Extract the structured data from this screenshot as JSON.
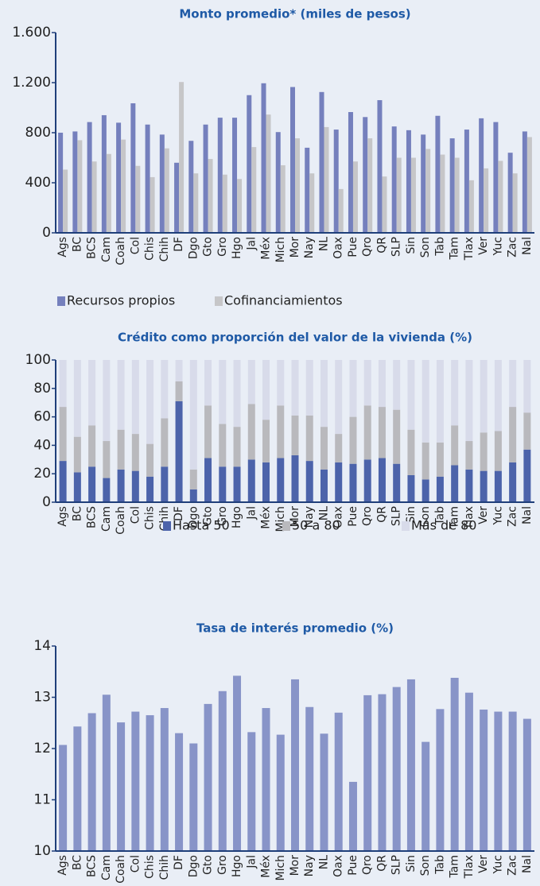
{
  "chart_data": [
    {
      "type": "bar",
      "title": "Monto promedio* (miles de pesos)",
      "categories": [
        "Ags",
        "BC",
        "BCS",
        "Cam",
        "Coah",
        "Col",
        "Chis",
        "Chih",
        "DF",
        "Dgo",
        "Gto",
        "Gro",
        "Hgo",
        "Jal",
        "Méx",
        "Mich",
        "Mor",
        "Nay",
        "NL",
        "Oax",
        "Pue",
        "Qro",
        "QR",
        "SLP",
        "Sin",
        "Son",
        "Tab",
        "Tam",
        "Tlax",
        "Ver",
        "Yuc",
        "Zac",
        "Nal"
      ],
      "series": [
        {
          "name": "Recursos propios",
          "color": "#7580bd",
          "values": [
            800,
            810,
            885,
            940,
            880,
            1035,
            865,
            785,
            560,
            735,
            865,
            920,
            920,
            1100,
            1195,
            805,
            1165,
            680,
            1125,
            825,
            965,
            925,
            1060,
            850,
            820,
            785,
            935,
            755,
            825,
            915,
            885,
            640,
            810
          ]
        },
        {
          "name": "Cofinanciamientos",
          "color": "#c6c6c8",
          "values": [
            505,
            740,
            570,
            630,
            745,
            535,
            445,
            675,
            1205,
            475,
            590,
            465,
            430,
            685,
            945,
            540,
            755,
            475,
            845,
            350,
            570,
            755,
            450,
            600,
            600,
            670,
            625,
            600,
            420,
            515,
            575,
            475,
            765
          ]
        }
      ],
      "ylim": [
        0,
        1600
      ],
      "yticks": [
        0,
        400,
        800,
        {
          "value": 1200,
          "label": "1.200"
        },
        {
          "value": 1600,
          "label": "1.600"
        }
      ]
    },
    {
      "type": "stacked_bar",
      "title": "Crédito como proporción del valor de la vivienda (%)",
      "categories": [
        "Ags",
        "BC",
        "BCS",
        "Cam",
        "Coah",
        "Col",
        "Chis",
        "Chih",
        "DF",
        "Dgo",
        "Gto",
        "Gro",
        "Hgo",
        "Jal",
        "Méx",
        "Mich",
        "Mor",
        "Nay",
        "NL",
        "Oax",
        "Pue",
        "Qro",
        "QR",
        "SLP",
        "Sin",
        "Son",
        "Tab",
        "Tam",
        "Tlax",
        "Ver",
        "Yuc",
        "Zac",
        "Nal"
      ],
      "series": [
        {
          "name": "Hasta 50",
          "color": "#4c63aa",
          "values": [
            29,
            21,
            25,
            17,
            23,
            22,
            18,
            25,
            71,
            9,
            31,
            25,
            25,
            30,
            28,
            31,
            33,
            29,
            23,
            28,
            27,
            30,
            31,
            27,
            19,
            16,
            18,
            26,
            23,
            22,
            22,
            28,
            37
          ]
        },
        {
          "name": "50 a 80",
          "color": "#b9b9bd",
          "values": [
            38,
            25,
            29,
            26,
            28,
            26,
            23,
            34,
            14,
            14,
            37,
            30,
            28,
            39,
            30,
            37,
            28,
            32,
            30,
            20,
            33,
            38,
            36,
            38,
            32,
            26,
            24,
            28,
            20,
            27,
            28,
            39,
            26
          ]
        },
        {
          "name": "Más de 80",
          "color": "#d8dbea",
          "values": [
            33,
            54,
            46,
            57,
            49,
            52,
            59,
            41,
            15,
            77,
            32,
            45,
            47,
            31,
            42,
            32,
            39,
            39,
            47,
            52,
            40,
            32,
            33,
            35,
            49,
            58,
            58,
            46,
            57,
            51,
            50,
            33,
            37
          ]
        }
      ],
      "ylim": [
        0,
        100
      ],
      "yticks": [
        0,
        20,
        40,
        60,
        80,
        100
      ]
    },
    {
      "type": "bar",
      "title": "Tasa de interés promedio (%)",
      "categories": [
        "Ags",
        "BC",
        "BCS",
        "Cam",
        "Coah",
        "Col",
        "Chis",
        "Chih",
        "DF",
        "Dgo",
        "Gto",
        "Gro",
        "Hgo",
        "Jal",
        "Méx",
        "Mich",
        "Mor",
        "Nay",
        "NL",
        "Oax",
        "Pue",
        "Qro",
        "QR",
        "SLP",
        "Sin",
        "Son",
        "Tab",
        "Tam",
        "Tlax",
        "Ver",
        "Yuc",
        "Zac",
        "Nal"
      ],
      "values": [
        12.07,
        12.43,
        12.69,
        13.05,
        12.51,
        12.72,
        12.65,
        12.79,
        12.3,
        12.1,
        12.87,
        13.12,
        13.42,
        12.32,
        12.79,
        12.27,
        13.35,
        12.81,
        12.29,
        12.7,
        11.35,
        13.04,
        13.06,
        13.2,
        13.35,
        12.13,
        12.77,
        13.38,
        13.09,
        12.76,
        12.72,
        12.72,
        12.58
      ],
      "color": "#8894c8",
      "ylim": [
        10,
        14
      ],
      "yticks": [
        10,
        11,
        12,
        13,
        14
      ]
    }
  ]
}
